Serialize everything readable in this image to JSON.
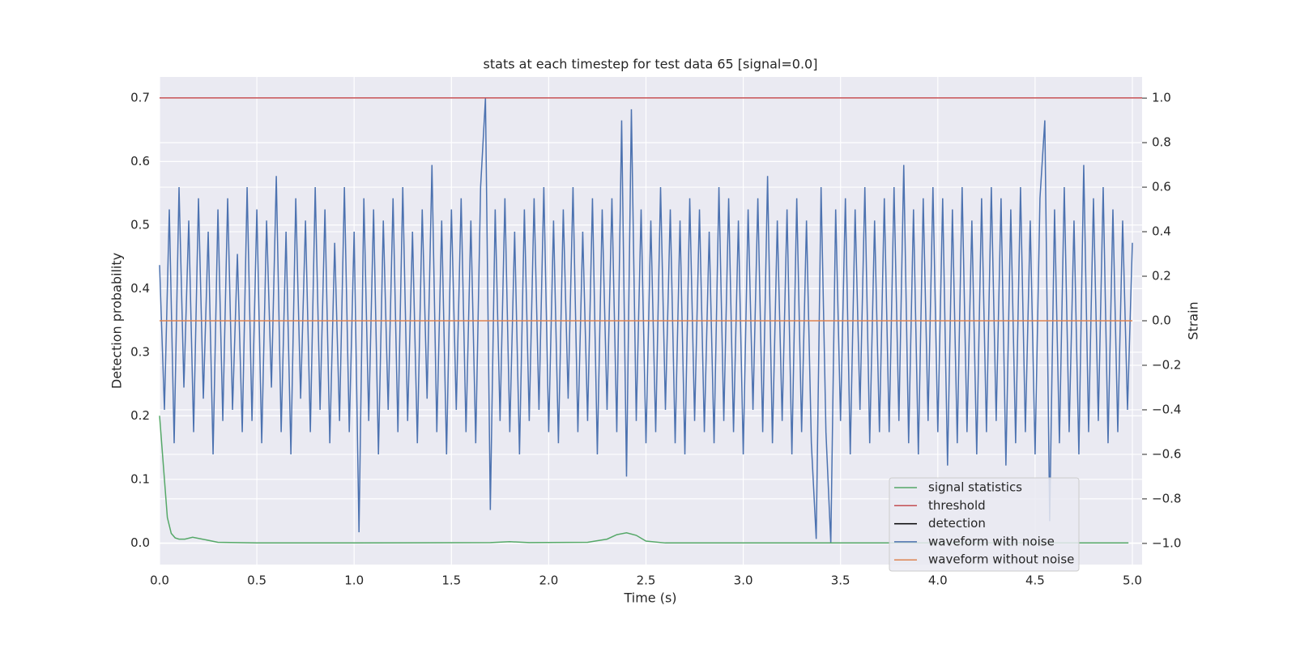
{
  "chart_data": {
    "type": "line",
    "title": "stats at each timestep for test data 65 [signal=0.0]",
    "xlabel": "Time (s)",
    "ylabel": "Detection probability",
    "y2label": "Strain",
    "xlim": [
      0,
      5.05
    ],
    "ylim": [
      -0.034,
      0.733
    ],
    "y2lim": [
      -1.095,
      1.095
    ],
    "xticks": [
      {
        "value": 0,
        "label": "0.0"
      },
      0.5,
      {
        "value": 1,
        "label": "1.0"
      },
      1.5,
      {
        "value": 2,
        "label": "2.0"
      },
      2.5,
      {
        "value": 3,
        "label": "3.0"
      },
      3.5,
      {
        "value": 4,
        "label": "4.0"
      },
      4.5,
      {
        "value": 5,
        "label": "5.0"
      }
    ],
    "yticks": [
      {
        "value": 0,
        "label": "0.0"
      },
      0.1,
      0.2,
      0.3,
      0.4,
      0.5,
      0.6,
      0.7
    ],
    "y2ticks": [
      {
        "value": -1,
        "label": "−1.0"
      },
      {
        "value": -0.8,
        "label": "−0.8"
      },
      {
        "value": -0.6,
        "label": "−0.6"
      },
      {
        "value": -0.4,
        "label": "−0.4"
      },
      {
        "value": -0.2,
        "label": "−0.2"
      },
      {
        "value": 0,
        "label": "0.0"
      },
      0.2,
      0.4,
      0.6,
      0.8,
      {
        "value": 1,
        "label": "1.0"
      }
    ],
    "grid": true,
    "legend": "lower right",
    "series": [
      {
        "name": "signal statistics",
        "color": "#55a868",
        "x": [
          0,
          0.02,
          0.04,
          0.06,
          0.08,
          0.1,
          0.13,
          0.17,
          0.22,
          0.3,
          0.5,
          1.0,
          1.7,
          1.8,
          1.9,
          2.2,
          2.3,
          2.35,
          2.4,
          2.45,
          2.5,
          2.6,
          3.0,
          4.0,
          4.98
        ],
        "values": [
          0.2,
          0.12,
          0.04,
          0.015,
          0.008,
          0.006,
          0.006,
          0.009,
          0.006,
          0.001,
          0,
          0,
          0.0005,
          0.002,
          0.0005,
          0.001,
          0.006,
          0.013,
          0.016,
          0.012,
          0.003,
          0,
          0,
          0,
          0
        ]
      },
      {
        "name": "threshold",
        "color": "#c44e52",
        "x": [
          0,
          5.05
        ],
        "values": [
          0.7,
          0.7
        ]
      },
      {
        "name": "detection",
        "color": "#000000",
        "x": [],
        "values": []
      },
      {
        "name": "waveform with noise",
        "color": "#4c72b0",
        "axis": "y2",
        "x": [
          0,
          0.025,
          0.05,
          0.075,
          0.1,
          0.125,
          0.15,
          0.175,
          0.2,
          0.225,
          0.25,
          0.275,
          0.3,
          0.325,
          0.35,
          0.375,
          0.4,
          0.425,
          0.45,
          0.475,
          0.5,
          0.525,
          0.55,
          0.575,
          0.6,
          0.625,
          0.65,
          0.675,
          0.7,
          0.725,
          0.75,
          0.775,
          0.8,
          0.825,
          0.85,
          0.875,
          0.9,
          0.925,
          0.95,
          0.975,
          1.0,
          1.025,
          1.05,
          1.075,
          1.1,
          1.125,
          1.15,
          1.175,
          1.2,
          1.225,
          1.25,
          1.275,
          1.3,
          1.325,
          1.35,
          1.375,
          1.4,
          1.425,
          1.45,
          1.475,
          1.5,
          1.525,
          1.55,
          1.575,
          1.6,
          1.625,
          1.65,
          1.675,
          1.7,
          1.725,
          1.75,
          1.775,
          1.8,
          1.825,
          1.85,
          1.875,
          1.9,
          1.925,
          1.95,
          1.975,
          2.0,
          2.025,
          2.05,
          2.075,
          2.1,
          2.125,
          2.15,
          2.175,
          2.2,
          2.225,
          2.25,
          2.275,
          2.3,
          2.325,
          2.35,
          2.375,
          2.4,
          2.425,
          2.45,
          2.475,
          2.5,
          2.525,
          2.55,
          2.575,
          2.6,
          2.625,
          2.65,
          2.675,
          2.7,
          2.725,
          2.75,
          2.775,
          2.8,
          2.825,
          2.85,
          2.875,
          2.9,
          2.925,
          2.95,
          2.975,
          3.0,
          3.025,
          3.05,
          3.075,
          3.1,
          3.125,
          3.15,
          3.175,
          3.2,
          3.225,
          3.25,
          3.275,
          3.3,
          3.325,
          3.35,
          3.375,
          3.4,
          3.425,
          3.45,
          3.475,
          3.5,
          3.525,
          3.55,
          3.575,
          3.6,
          3.625,
          3.65,
          3.675,
          3.7,
          3.725,
          3.75,
          3.775,
          3.8,
          3.825,
          3.85,
          3.875,
          3.9,
          3.925,
          3.95,
          3.975,
          4.0,
          4.025,
          4.05,
          4.075,
          4.1,
          4.125,
          4.15,
          4.175,
          4.2,
          4.225,
          4.25,
          4.275,
          4.3,
          4.325,
          4.35,
          4.375,
          4.4,
          4.425,
          4.45,
          4.475,
          4.5,
          4.525,
          4.55,
          4.575,
          4.6,
          4.625,
          4.65,
          4.675,
          4.7,
          4.725,
          4.75,
          4.775,
          4.8,
          4.825,
          4.85,
          4.875,
          4.9,
          4.925,
          4.95,
          4.975,
          5.0
        ],
        "values": [
          0.25,
          -0.4,
          0.5,
          -0.55,
          0.6,
          -0.3,
          0.45,
          -0.5,
          0.55,
          -0.35,
          0.4,
          -0.6,
          0.5,
          -0.45,
          0.55,
          -0.4,
          0.3,
          -0.5,
          0.6,
          -0.45,
          0.5,
          -0.55,
          0.45,
          -0.3,
          0.65,
          -0.5,
          0.4,
          -0.6,
          0.55,
          -0.35,
          0.45,
          -0.5,
          0.6,
          -0.4,
          0.5,
          -0.55,
          0.35,
          -0.45,
          0.6,
          -0.5,
          0.4,
          -0.95,
          0.55,
          -0.45,
          0.5,
          -0.6,
          0.45,
          -0.4,
          0.55,
          -0.5,
          0.6,
          -0.45,
          0.4,
          -0.55,
          0.5,
          -0.35,
          0.7,
          -0.5,
          0.45,
          -0.6,
          0.5,
          -0.4,
          0.55,
          -0.5,
          0.45,
          -0.55,
          0.6,
          1.0,
          -0.85,
          0.5,
          -0.45,
          0.55,
          -0.5,
          0.4,
          -0.6,
          0.5,
          -0.45,
          0.55,
          -0.4,
          0.6,
          -0.5,
          0.45,
          -0.55,
          0.5,
          -0.35,
          0.6,
          -0.5,
          0.4,
          -0.45,
          0.55,
          -0.6,
          0.5,
          -0.4,
          0.55,
          -0.5,
          0.9,
          -0.7,
          0.95,
          -0.45,
          0.5,
          -0.55,
          0.45,
          -0.5,
          0.6,
          -0.4,
          0.5,
          -0.55,
          0.45,
          -0.6,
          0.55,
          -0.45,
          0.5,
          -0.5,
          0.4,
          -0.55,
          0.6,
          -0.45,
          0.55,
          -0.5,
          0.45,
          -0.6,
          0.5,
          -0.4,
          0.55,
          -0.5,
          0.65,
          -0.55,
          0.45,
          -0.45,
          0.5,
          -0.6,
          0.55,
          -0.5,
          0.45,
          -0.55,
          -0.98,
          0.6,
          -0.5,
          -1.0,
          0.5,
          -0.45,
          0.55,
          -0.6,
          0.5,
          -0.4,
          0.6,
          -0.55,
          0.45,
          -0.5,
          0.55,
          -0.5,
          0.6,
          -0.45,
          0.7,
          -0.55,
          0.5,
          -0.6,
          0.55,
          -0.45,
          0.6,
          -0.5,
          0.55,
          -0.65,
          0.5,
          -0.55,
          0.6,
          -0.5,
          0.45,
          -0.6,
          0.55,
          -0.5,
          0.6,
          -0.45,
          0.55,
          -0.65,
          0.5,
          -0.55,
          0.6,
          -0.5,
          0.45,
          -0.6,
          0.55,
          0.9,
          -0.9,
          0.5,
          -0.55,
          0.6,
          -0.5,
          0.45,
          -0.6,
          0.7,
          -0.5,
          0.55,
          -0.45,
          0.6,
          -0.55,
          0.5,
          -0.5,
          0.45,
          -0.4,
          0.35
        ]
      },
      {
        "name": "waveform without noise",
        "color": "#dd8452",
        "axis": "y2",
        "x": [
          0,
          5.0
        ],
        "values": [
          0,
          0
        ]
      }
    ]
  }
}
